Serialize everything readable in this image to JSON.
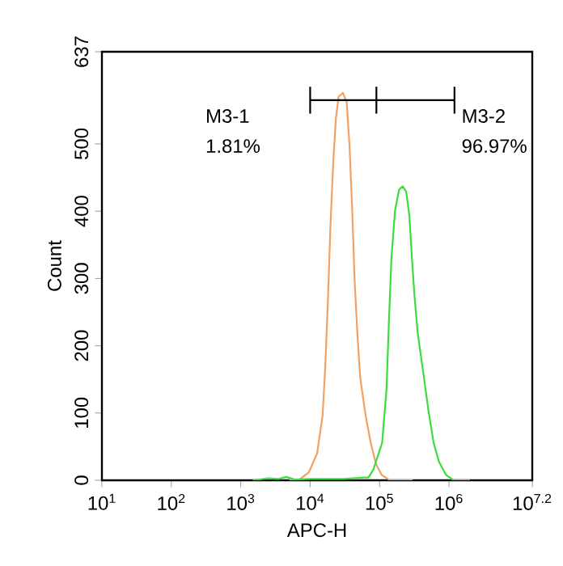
{
  "chart_data": {
    "type": "line",
    "xlabel": "APC-H",
    "ylabel": "Count",
    "log": "x",
    "marker": "none",
    "grid": false,
    "xlim": [
      10,
      15848932
    ],
    "ylim": [
      0,
      637
    ],
    "xticks": [
      {
        "value": 10,
        "label": "10$^{1}$"
      },
      {
        "value": 100,
        "label": "10$^{2}$"
      },
      {
        "value": 1000,
        "label": "10$^{3}$"
      },
      {
        "value": 10000,
        "label": "10$^{4}$"
      },
      {
        "value": 100000,
        "label": "10$^{5}$"
      },
      {
        "value": 1000000,
        "label": "10$^{6}$"
      },
      {
        "value": 15848932,
        "label": "10$^{7.2}$"
      }
    ],
    "yticks": [
      0,
      100,
      200,
      300,
      400,
      500,
      637
    ],
    "series": [
      {
        "color": "#f2a063",
        "x": [
          5000,
          6760,
          9600,
          12600,
          15100,
          16500,
          18100,
          19600,
          21500,
          23500,
          25700,
          29600,
          33600,
          36900,
          40100,
          43700,
          48000,
          52500,
          63000,
          74500,
          89000,
          107000,
          141000,
          300000
        ],
        "values": [
          0,
          0,
          12,
          40,
          96,
          168,
          273,
          377,
          473,
          538,
          570,
          576,
          562,
          497,
          409,
          297,
          217,
          153,
          96,
          56,
          24,
          8,
          0,
          0
        ]
      },
      {
        "color": "#3ddc3d",
        "x": [
          1500,
          2500,
          3500,
          4500,
          6000,
          10000,
          30000,
          60000,
          69000,
          81500,
          109000,
          126000,
          136000,
          148000,
          167000,
          191000,
          215000,
          242000,
          269000,
          293000,
          319000,
          356000,
          425000,
          505000,
          600000,
          714000,
          906000,
          1170000,
          2000000
        ],
        "values": [
          0,
          3,
          2,
          5,
          1,
          2,
          2,
          4,
          4,
          16,
          56,
          136,
          233,
          329,
          401,
          432,
          437,
          429,
          393,
          329,
          273,
          217,
          161,
          104,
          56,
          28,
          8,
          0,
          0
        ]
      },
      {
        "color": "#000000",
        "x": [
          10000,
          90000,
          1200000
        ],
        "values": [
          565,
          565,
          565
        ],
        "errors": [
          20,
          20,
          20
        ]
      }
    ],
    "annotations": [
      "M3-1",
      "1.81%",
      "M3-2",
      "96.97%"
    ]
  }
}
